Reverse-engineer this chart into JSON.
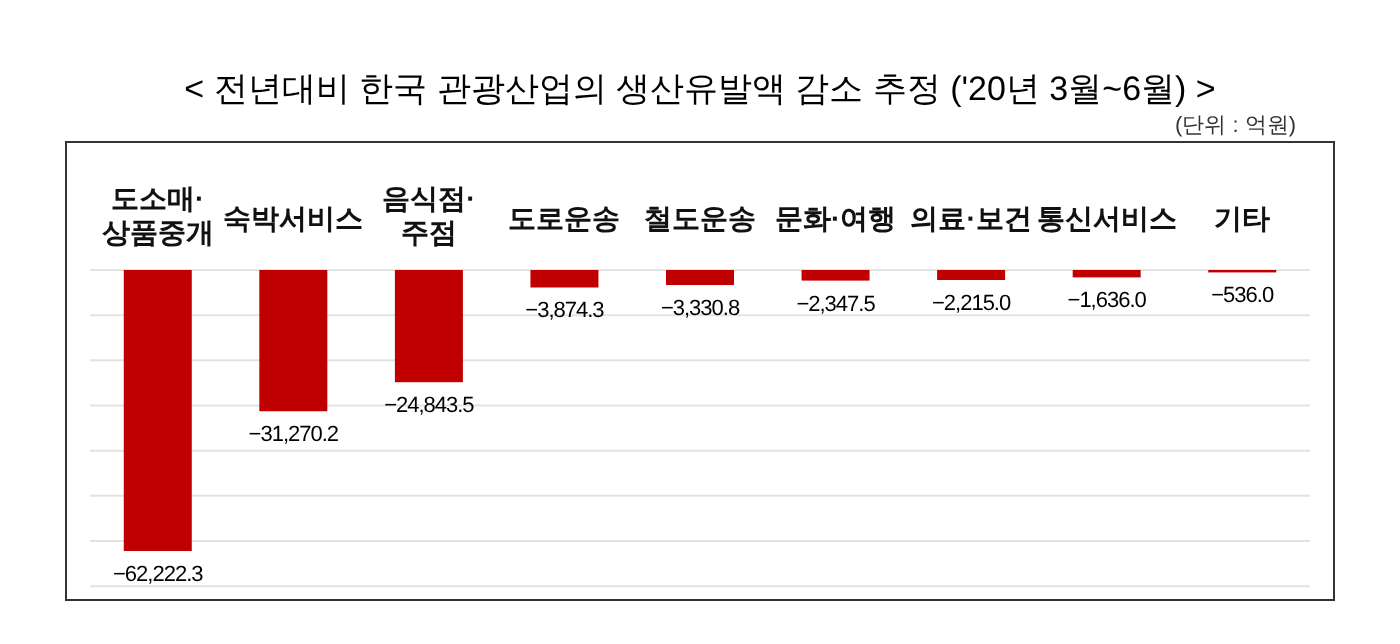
{
  "chart_data": {
    "type": "bar",
    "title": "< 전년대비 한국 관광산업의 생산유발액 감소 추정 ('20년 3월~6월) >",
    "subtitle": "(단위 : 억원)",
    "categories": [
      "도소매·\n상품중개",
      "숙박서비스",
      "음식점·\n주점",
      "도로운송",
      "철도운송",
      "문화·여행",
      "의료·보건",
      "통신서비스",
      "기타"
    ],
    "values": [
      -62222.3,
      -31270.2,
      -24843.5,
      -3874.3,
      -3330.8,
      -2347.5,
      -2215.0,
      -1636.0,
      -536.0
    ],
    "value_labels": [
      "−62,222.3",
      "−31,270.2",
      "−24,843.5",
      "−3,874.3",
      "−3,330.8",
      "−2,347.5",
      "−2,215.0",
      "−1,636.0",
      "−536.0"
    ],
    "color": "#c00000",
    "grid": "y",
    "tick_labels": "x"
  }
}
